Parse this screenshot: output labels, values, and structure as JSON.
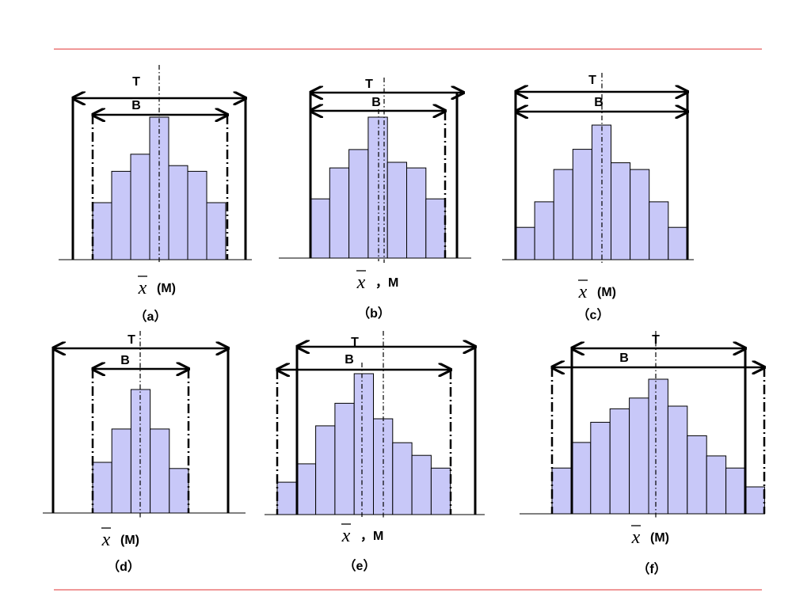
{
  "colors": {
    "bar_fill": "#c8c8f8",
    "rule": "#e03030",
    "ink": "#000000"
  },
  "panels": [
    {
      "id": "a",
      "T": "T",
      "B": "B",
      "xbar": "x",
      "center": "(M)",
      "caption": "（a）",
      "bars": [
        0.4,
        0.62,
        0.74,
        1.0,
        0.66,
        0.62,
        0.4
      ]
    },
    {
      "id": "b",
      "T": "T",
      "B": "B",
      "xbar": "x",
      "center": "，M",
      "caption": "（b）",
      "bars": [
        0.42,
        0.64,
        0.77,
        1.0,
        0.68,
        0.64,
        0.42
      ]
    },
    {
      "id": "c",
      "T": "T",
      "B": "B",
      "xbar": "x",
      "center": "(M)",
      "caption": "（c）",
      "bars": [
        0.24,
        0.43,
        0.67,
        0.82,
        1.0,
        0.72,
        0.67,
        0.43,
        0.24
      ]
    },
    {
      "id": "d",
      "T": "T",
      "B": "B",
      "xbar": "x",
      "center": "(M)",
      "caption": "（d）",
      "bars": [
        0.41,
        0.68,
        1.0,
        0.68,
        0.36
      ]
    },
    {
      "id": "e",
      "T": "T",
      "B": "B",
      "xbar": "x",
      "center": "，M",
      "caption": "（e）",
      "bars": [
        0.23,
        0.36,
        0.63,
        0.79,
        1.0,
        0.68,
        0.51,
        0.42,
        0.33
      ]
    },
    {
      "id": "f",
      "T": "T",
      "B": "B",
      "xbar": "x",
      "center": "(M)",
      "caption": "（f）",
      "bars": [
        0.34,
        0.53,
        0.68,
        0.78,
        0.86,
        1.0,
        0.8,
        0.58,
        0.43,
        0.34,
        0.2
      ]
    }
  ]
}
